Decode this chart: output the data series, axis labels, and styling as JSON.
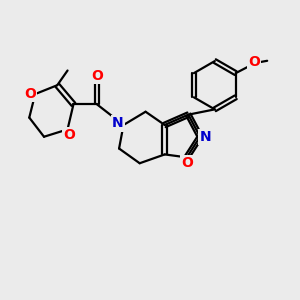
{
  "bg_color": "#ebebeb",
  "bond_color": "#000000",
  "bond_width": 1.6,
  "atom_colors": {
    "O": "#ff0000",
    "N": "#0000cc",
    "C": "#000000"
  },
  "font_size_atoms": 10,
  "figsize": [
    3.0,
    3.0
  ],
  "dpi": 100,
  "xlim": [
    0,
    10
  ],
  "ylim": [
    0,
    10
  ]
}
